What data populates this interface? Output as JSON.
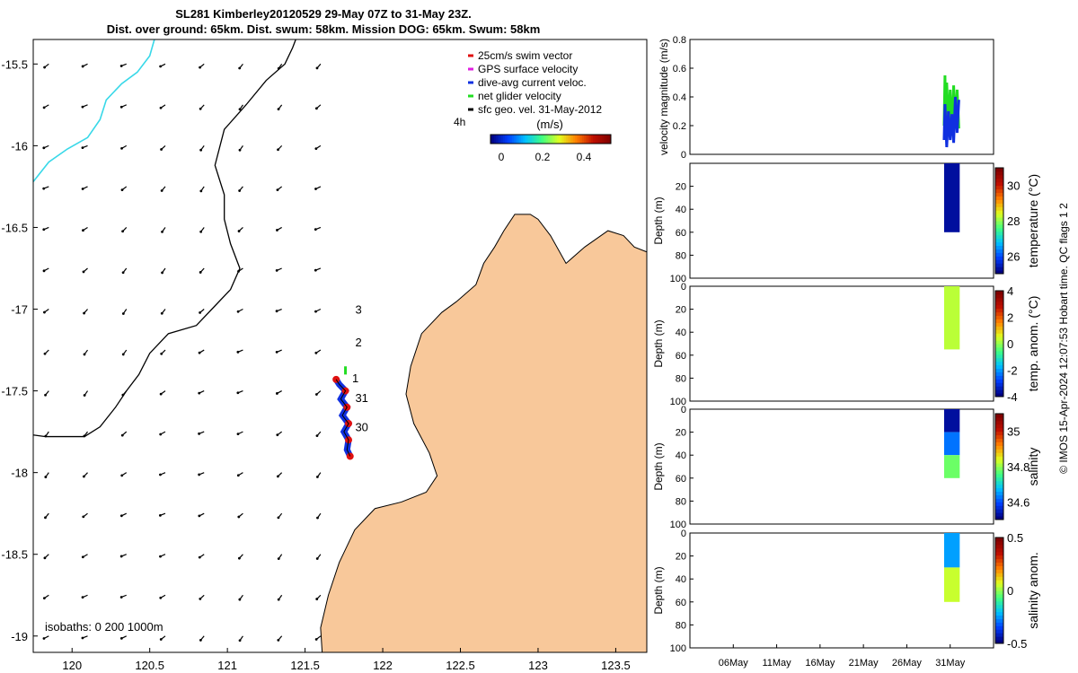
{
  "title_line1": "SL281 Kimberley20120529 29-May 07Z to 31-May 23Z.",
  "title_line2": "Dist. over ground: 65km. Dist. swum: 58km. Mission DOG: 65km. Swum: 58km",
  "copyright": "© IMOS 15-Apr-2024 12:07:53 Hobart time. QC flags 1  2",
  "colors": {
    "land": "#f8c89a",
    "sea": "#ffffff",
    "isobath_200": "#000000",
    "isobath_1000": "#38d8e8"
  },
  "chart_data": [
    {
      "type": "map",
      "name": "glider track map",
      "xlim": [
        119.75,
        123.7
      ],
      "ylim": [
        -19.1,
        -15.35
      ],
      "xticks": [
        120,
        120.5,
        121,
        121.5,
        122,
        122.5,
        123,
        123.5
      ],
      "xtick_labels": [
        "120",
        "120.5",
        "121",
        "121.5",
        "122",
        "122.5",
        "123",
        "123.5"
      ],
      "yticks": [
        -15.5,
        -16,
        -16.5,
        -17,
        -17.5,
        -18,
        -18.5,
        -19
      ],
      "ytick_labels": [
        "-15.5",
        "-16",
        "-16.5",
        "-17",
        "-17.5",
        "-18",
        "-18.5",
        "-19"
      ],
      "legend": [
        {
          "label": "25cm/s swim vector",
          "color": "#e01010"
        },
        {
          "label": "GPS surface velocity",
          "color": "#e020e0"
        },
        {
          "label": "dive-avg current veloc.",
          "color": "#1030e0"
        },
        {
          "label": "net glider velocity",
          "color": "#22dd22"
        },
        {
          "label": "sfc geo. vel. 31-May-2012",
          "color": "#000000"
        }
      ],
      "legend_extra": "4h",
      "colorbar": {
        "label": "(m/s)",
        "ticks": [
          0,
          0.2,
          0.4
        ],
        "tick_labels": [
          "0",
          "0.2",
          "0.4"
        ]
      },
      "day_labels": [
        {
          "text": "3",
          "lon": 121.8,
          "lat": -17.0
        },
        {
          "text": "2",
          "lon": 121.8,
          "lat": -17.2
        },
        {
          "text": "1",
          "lon": 121.78,
          "lat": -17.42
        },
        {
          "text": "31",
          "lon": 121.8,
          "lat": -17.54
        },
        {
          "text": "30",
          "lon": 121.8,
          "lat": -17.72
        }
      ],
      "isobath_label": "isobaths: 0   200  1000m",
      "track": [
        [
          121.7,
          -17.43
        ],
        [
          121.72,
          -17.46
        ],
        [
          121.76,
          -17.5
        ],
        [
          121.73,
          -17.55
        ],
        [
          121.77,
          -17.6
        ],
        [
          121.74,
          -17.65
        ],
        [
          121.78,
          -17.7
        ],
        [
          121.75,
          -17.75
        ],
        [
          121.78,
          -17.8
        ],
        [
          121.77,
          -17.86
        ],
        [
          121.79,
          -17.9
        ]
      ],
      "isobath_200": [
        [
          119.75,
          -17.77
        ],
        [
          119.83,
          -17.78
        ],
        [
          120.08,
          -17.78
        ],
        [
          120.18,
          -17.72
        ],
        [
          120.28,
          -17.6
        ],
        [
          120.35,
          -17.5
        ],
        [
          120.43,
          -17.4
        ],
        [
          120.5,
          -17.27
        ],
        [
          120.62,
          -17.15
        ],
        [
          120.8,
          -17.1
        ],
        [
          120.92,
          -16.98
        ],
        [
          121.02,
          -16.88
        ],
        [
          121.08,
          -16.75
        ],
        [
          121.02,
          -16.6
        ],
        [
          120.98,
          -16.45
        ],
        [
          120.98,
          -16.3
        ],
        [
          120.92,
          -16.12
        ],
        [
          120.98,
          -15.9
        ],
        [
          121.12,
          -15.75
        ],
        [
          121.25,
          -15.6
        ],
        [
          121.37,
          -15.5
        ],
        [
          121.42,
          -15.4
        ],
        [
          121.44,
          -15.35
        ]
      ],
      "isobath_1000": [
        [
          119.75,
          -16.22
        ],
        [
          119.85,
          -16.1
        ],
        [
          119.97,
          -16.02
        ],
        [
          120.1,
          -15.95
        ],
        [
          120.18,
          -15.84
        ],
        [
          120.22,
          -15.72
        ],
        [
          120.32,
          -15.62
        ],
        [
          120.42,
          -15.55
        ],
        [
          120.5,
          -15.45
        ],
        [
          120.53,
          -15.35
        ]
      ],
      "coast": [
        [
          123.7,
          -19.1
        ],
        [
          121.61,
          -19.1
        ],
        [
          121.6,
          -18.95
        ],
        [
          121.65,
          -18.75
        ],
        [
          121.72,
          -18.55
        ],
        [
          121.82,
          -18.35
        ],
        [
          121.95,
          -18.22
        ],
        [
          122.12,
          -18.18
        ],
        [
          122.28,
          -18.12
        ],
        [
          122.35,
          -18.02
        ],
        [
          122.3,
          -17.88
        ],
        [
          122.2,
          -17.7
        ],
        [
          122.15,
          -17.52
        ],
        [
          122.18,
          -17.35
        ],
        [
          122.25,
          -17.15
        ],
        [
          122.38,
          -17.02
        ],
        [
          122.48,
          -16.95
        ],
        [
          122.6,
          -16.85
        ],
        [
          122.65,
          -16.72
        ],
        [
          122.72,
          -16.62
        ],
        [
          122.78,
          -16.52
        ],
        [
          122.85,
          -16.42
        ],
        [
          122.95,
          -16.42
        ],
        [
          123.0,
          -16.45
        ],
        [
          123.08,
          -16.55
        ],
        [
          123.18,
          -16.72
        ],
        [
          123.3,
          -16.62
        ],
        [
          123.45,
          -16.52
        ],
        [
          123.55,
          -16.55
        ],
        [
          123.62,
          -16.62
        ],
        [
          123.7,
          -16.65
        ]
      ],
      "arrow_lon": [
        119.85,
        120.1,
        120.35,
        120.6,
        120.85,
        121.1,
        121.35,
        121.6
      ],
      "arrow_lat": [
        -15.5,
        -15.75,
        -16.0,
        -16.25,
        -16.5,
        -16.75,
        -17.0,
        -17.25,
        -17.5,
        -17.75,
        -18.0,
        -18.25,
        -18.5,
        -18.75,
        -19.0
      ]
    },
    {
      "type": "line",
      "name": "velocity magnitude timeseries",
      "ylabel": "velocity magnitude (m/s)",
      "ylim": [
        0,
        0.8
      ],
      "yticks": [
        0,
        0.2,
        0.4,
        0.6,
        0.8
      ],
      "ytick_labels": [
        "0",
        "0.2",
        "0.4",
        "0.6",
        "0.8"
      ],
      "x_days": [
        1,
        36
      ],
      "xticks": [
        6,
        11,
        16,
        21,
        26,
        31
      ],
      "xtick_labels": [
        "06May",
        "11May",
        "16May",
        "21May",
        "26May",
        "31May"
      ],
      "series": [
        {
          "name": "net glider velocity",
          "color": "#22dd22",
          "x": [
            30.3,
            30.4,
            30.5,
            30.6,
            30.8,
            31.0,
            31.2,
            31.4,
            31.6,
            31.8,
            32.0
          ],
          "values": [
            0.2,
            0.55,
            0.15,
            0.5,
            0.2,
            0.45,
            0.15,
            0.48,
            0.2,
            0.45,
            0.18
          ]
        },
        {
          "name": "dive-avg current veloc.",
          "color": "#1030e0",
          "x": [
            30.3,
            30.4,
            30.6,
            30.8,
            31.0,
            31.2,
            31.4,
            31.6,
            31.8,
            32.0
          ],
          "values": [
            0.1,
            0.35,
            0.05,
            0.3,
            0.1,
            0.28,
            0.08,
            0.4,
            0.15,
            0.38
          ]
        }
      ]
    },
    {
      "type": "heatmap",
      "name": "temperature section",
      "ylabel": "Depth (m)",
      "ylim": [
        100,
        0
      ],
      "yticks": [
        20,
        40,
        60,
        80,
        100
      ],
      "ytick_labels": [
        "20",
        "40",
        "60",
        "80",
        "100"
      ],
      "cbar_label": "temperature (°C)",
      "cbar_range": [
        25,
        31
      ],
      "cbar_ticks": [
        26,
        28,
        30
      ],
      "cbar_tick_labels": [
        "26",
        "28",
        "30"
      ],
      "cbar_colors": [
        "#000080",
        "#0040ff",
        "#00c0ff",
        "#40ff80",
        "#e0ff20",
        "#ff8000",
        "#c01000",
        "#800000"
      ],
      "bands": [
        {
          "top": 0,
          "bottom": 60,
          "value": 25.2
        }
      ]
    },
    {
      "type": "heatmap",
      "name": "temperature anomaly section",
      "ylabel": "Depth (m)",
      "ylim": [
        100,
        0
      ],
      "yticks": [
        0,
        20,
        40,
        60,
        80,
        100
      ],
      "ytick_labels": [
        "0",
        "20",
        "40",
        "60",
        "80",
        "100"
      ],
      "cbar_label": "temp. anom. (°C)",
      "cbar_range": [
        -4,
        4
      ],
      "cbar_ticks": [
        -4,
        -2,
        0,
        2,
        4
      ],
      "cbar_tick_labels": [
        "-4",
        "-2",
        "0",
        "2",
        "4"
      ],
      "cbar_colors": [
        "#000080",
        "#0040ff",
        "#00c0ff",
        "#40ff80",
        "#e0ff20",
        "#ff8000",
        "#c01000",
        "#800000"
      ],
      "bands": [
        {
          "top": 0,
          "bottom": 55,
          "value": 0.3
        }
      ]
    },
    {
      "type": "heatmap",
      "name": "salinity section",
      "ylabel": "Depth (m)",
      "ylim": [
        100,
        0
      ],
      "yticks": [
        0,
        20,
        40,
        60,
        80,
        100
      ],
      "ytick_labels": [
        "0",
        "20",
        "40",
        "60",
        "80",
        "100"
      ],
      "cbar_label": "salinity",
      "cbar_range": [
        34.5,
        35.1
      ],
      "cbar_ticks": [
        34.6,
        34.8,
        35
      ],
      "cbar_tick_labels": [
        "34.6",
        "34.8",
        "35"
      ],
      "cbar_colors": [
        "#000080",
        "#0040ff",
        "#00c0ff",
        "#40ff80",
        "#e0ff20",
        "#ff8000",
        "#c01000",
        "#800000"
      ],
      "bands": [
        {
          "top": 0,
          "bottom": 20,
          "value": 34.52
        },
        {
          "top": 20,
          "bottom": 40,
          "value": 34.62
        },
        {
          "top": 40,
          "bottom": 60,
          "value": 34.78
        }
      ]
    },
    {
      "type": "heatmap",
      "name": "salinity anomaly section",
      "ylabel": "Depth (m)",
      "ylim": [
        100,
        0
      ],
      "yticks": [
        0,
        20,
        40,
        60,
        80,
        100
      ],
      "ytick_labels": [
        "0",
        "20",
        "40",
        "60",
        "80",
        "100"
      ],
      "cbar_label": "salinity anom.",
      "cbar_range": [
        -0.5,
        0.5
      ],
      "cbar_ticks": [
        -0.5,
        0,
        0.5
      ],
      "cbar_tick_labels": [
        "-0.5",
        "0",
        "0.5"
      ],
      "cbar_colors": [
        "#000080",
        "#0040ff",
        "#00c0ff",
        "#40ff80",
        "#e0ff20",
        "#ff8000",
        "#c01000",
        "#800000"
      ],
      "bands": [
        {
          "top": 0,
          "bottom": 30,
          "value": -0.25
        },
        {
          "top": 30,
          "bottom": 60,
          "value": 0.05
        }
      ]
    }
  ]
}
